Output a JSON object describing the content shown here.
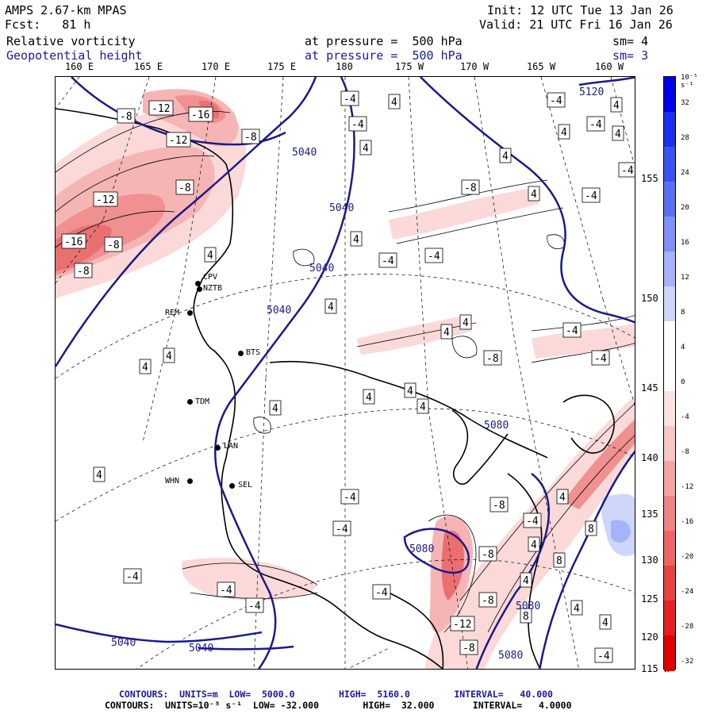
{
  "header": {
    "model": "AMPS 2.67-km MPAS",
    "fcst": "Fcst:   81 h",
    "init": "Init: 12 UTC Tue 13 Jan 26",
    "valid": "Valid: 21 UTC Fri 16 Jan 26",
    "field1": {
      "name": "Relative vorticity",
      "level": "at pressure =  500 hPa",
      "sm": "sm= 4"
    },
    "field2": {
      "name": "Geopotential height",
      "level": "at pressure =  500 hPa",
      "sm": "sm= 3"
    }
  },
  "longitude_labels": [
    "160 E",
    "165 E",
    "170 E",
    "175 E",
    "180",
    "175 W",
    "170 W",
    "165 W",
    "160 W"
  ],
  "latitude_labels": [
    "155 W",
    "150 W",
    "145 W",
    "140 W",
    "135 W",
    "130 W",
    "125 W",
    "120 W",
    "115 W"
  ],
  "stations": [
    "CPV",
    "NZTB",
    "REM",
    "BTS",
    "TDM",
    "LAN",
    "WHN",
    "SEL"
  ],
  "height_contour_labels": [
    "5120",
    "5040",
    "5040",
    "5040",
    "5040",
    "5080",
    "5040",
    "5040",
    "5080",
    "5080",
    "5080"
  ],
  "colorbar": {
    "unit": "10⁻⁵ s⁻¹",
    "levels": [
      "32",
      "28",
      "24",
      "20",
      "16",
      "12",
      "8",
      "4",
      "0",
      "-4",
      "-8",
      "-12",
      "-16",
      "-20",
      "-24",
      "-28",
      "-32"
    ],
    "colors": [
      "#0000ee",
      "#1c2ef0",
      "#3a52f2",
      "#5a70f4",
      "#7f91f6",
      "#a6b2f9",
      "#cfd6fc",
      "#ffffff",
      "#ffffff",
      "#fde2e2",
      "#f9c6c6",
      "#f5a4a4",
      "#f08484",
      "#ec6464",
      "#e84242",
      "#e42020",
      "#e00000"
    ]
  },
  "footer": {
    "line1": "CONTOURS:  UNITS=m  LOW=  5000.0        HIGH=  5160.0        INTERVAL=   40.000",
    "line2": "CONTOURS:  UNITS=10⁻⁵ s⁻¹  LOW= -32.000        HIGH=  32.000       INTERVAL=   4.0000"
  }
}
